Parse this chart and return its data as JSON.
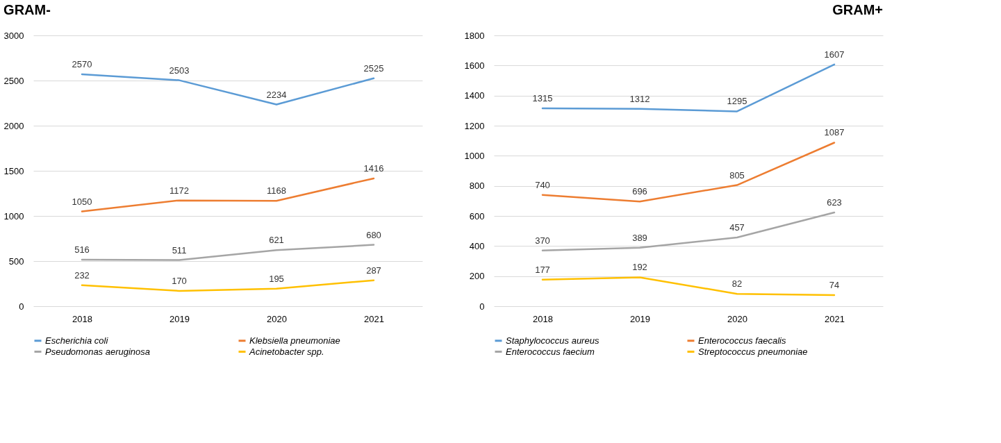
{
  "chart_data": [
    {
      "type": "line",
      "title": "GRAM-",
      "categories": [
        "2018",
        "2019",
        "2020",
        "2021"
      ],
      "ylim": [
        0,
        3000
      ],
      "yticks": [
        0,
        500,
        1000,
        1500,
        2000,
        2500,
        3000
      ],
      "grid": "y",
      "legend": "bottom",
      "data_labels": true,
      "marker": "none",
      "line_style": "solid",
      "series": [
        {
          "name": "Escherichia coli",
          "color": "#5b9bd5",
          "values": [
            2570,
            2503,
            2234,
            2525
          ]
        },
        {
          "name": "Klebsiella pneumoniae",
          "color": "#ed7d31",
          "values": [
            1050,
            1172,
            1168,
            1416
          ]
        },
        {
          "name": "Pseudomonas aeruginosa",
          "color": "#a5a5a5",
          "values": [
            516,
            511,
            621,
            680
          ]
        },
        {
          "name": "Acinetobacter spp.",
          "color": "#ffc000",
          "values": [
            232,
            170,
            195,
            287
          ]
        }
      ]
    },
    {
      "type": "line",
      "title": "GRAM+",
      "categories": [
        "2018",
        "2019",
        "2020",
        "2021"
      ],
      "ylim": [
        0,
        1800
      ],
      "yticks": [
        0,
        200,
        400,
        600,
        800,
        1000,
        1200,
        1400,
        1600,
        1800
      ],
      "grid": "y",
      "legend": "bottom",
      "data_labels": true,
      "marker": "none",
      "line_style": "solid",
      "series": [
        {
          "name": "Staphylococcus aureus",
          "color": "#5b9bd5",
          "values": [
            1315,
            1312,
            1295,
            1607
          ]
        },
        {
          "name": "Enterococcus faecalis",
          "color": "#ed7d31",
          "values": [
            740,
            696,
            805,
            1087
          ]
        },
        {
          "name": "Enterococcus faecium",
          "color": "#a5a5a5",
          "values": [
            370,
            389,
            457,
            623
          ]
        },
        {
          "name": "Streptococcus pneumoniae",
          "color": "#ffc000",
          "values": [
            177,
            192,
            82,
            74
          ]
        }
      ]
    }
  ]
}
